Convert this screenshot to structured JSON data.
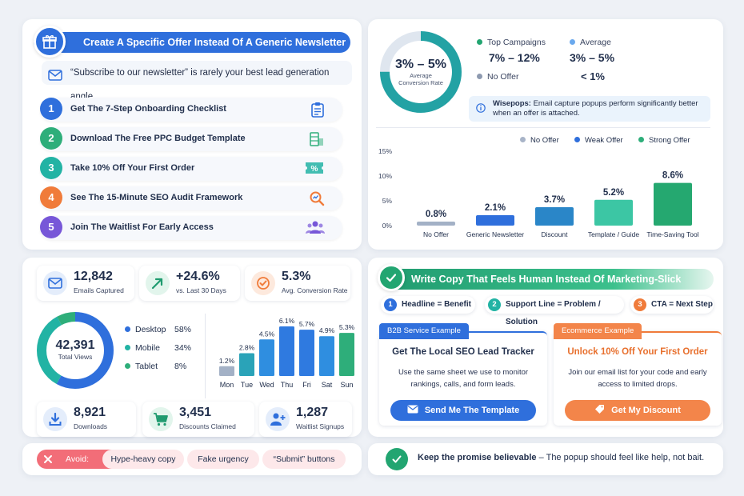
{
  "offers_panel": {
    "title": "Create A Specific Offer Instead Of A Generic Newsletter Ask",
    "quote": "“Subscribe to our newsletter” is rarely your best lead generation angle...",
    "items": [
      {
        "num": "1",
        "label": "Get The 7-Step Onboarding Checklist",
        "color": "#2f6fdc",
        "icon": "clipboard-icon"
      },
      {
        "num": "2",
        "label": "Download The Free PPC Budget Template",
        "color": "#2eae7a",
        "icon": "spreadsheet-icon"
      },
      {
        "num": "3",
        "label": "Take 10% Off Your First Order",
        "color": "#22b3a4",
        "icon": "discount-ticket-icon"
      },
      {
        "num": "4",
        "label": "See The 15-Minute SEO Audit Framework",
        "color": "#f07b3a",
        "icon": "magnifier-icon"
      },
      {
        "num": "5",
        "label": "Join The Waitlist For Early Access",
        "color": "#7757d8",
        "icon": "people-icon"
      }
    ]
  },
  "conversion_panel": {
    "donut_value": "3% – 5%",
    "donut_label_line1": "Average",
    "donut_label_line2": "Conversion Rate",
    "top_campaigns_label": "Top Campaigns",
    "top_campaigns_value": "7% – 12%",
    "average_label": "Average",
    "average_value": "3% – 5%",
    "no_offer_label": "No Offer",
    "no_offer_value": "< 1%",
    "info_bold": "Wisepops:",
    "info_text": " Email capture popups perform significantly better when an offer is attached.",
    "legend": [
      "No Offer",
      "Weak Offer",
      "Strong Offer"
    ]
  },
  "chart_data": {
    "type": "bar",
    "categories": [
      "No Offer",
      "Generic Newsletter",
      "Discount",
      "Template / Guide",
      "Time-Saving Tool"
    ],
    "values": [
      0.8,
      2.1,
      3.7,
      5.2,
      8.6
    ],
    "value_labels": [
      "0.8%",
      "2.1%",
      "3.7%",
      "5.2%",
      "8.6%"
    ],
    "colors": [
      "#a3b1c6",
      "#2f6fdc",
      "#2a86c8",
      "#3cc6a4",
      "#25a870"
    ],
    "ytick_labels": [
      "15%",
      "10%",
      "5%",
      "0%"
    ],
    "ylim": [
      0,
      15
    ],
    "grid": false,
    "legend_placement": "top-right",
    "legend_colors": [
      "#a8b4c8",
      "#2f6fdc",
      "#2eae7a"
    ]
  },
  "metrics_panel": {
    "top_metrics": [
      {
        "value": "12,842",
        "label": "Emails Captured",
        "icon": "envelope-icon",
        "color": "#2f6fdc",
        "bg": "#e4edfb"
      },
      {
        "value": "+24.6%",
        "label": "vs. Last 30 Days",
        "icon": "trend-up-icon",
        "color": "#1f9b6f",
        "bg": "#e2f5ec"
      },
      {
        "value": "5.3%",
        "label": "Avg. Conversion Rate",
        "icon": "target-check-icon",
        "color": "#f07b3a",
        "bg": "#fde9dd"
      }
    ],
    "views_total": "42,391",
    "views_label": "Total Views",
    "devices": [
      {
        "name": "Desktop",
        "pct": "58%",
        "share": 58,
        "color": "#2f6fdc"
      },
      {
        "name": "Mobile",
        "pct": "34%",
        "share": 34,
        "color": "#22b3a4"
      },
      {
        "name": "Tablet",
        "pct": "8%",
        "share": 8,
        "color": "#2eae7a"
      }
    ],
    "week_chart": {
      "days": [
        "Mon",
        "Tue",
        "Wed",
        "Thu",
        "Fri",
        "Sat",
        "Sun"
      ],
      "values": [
        1.2,
        2.8,
        4.5,
        6.1,
        5.7,
        4.9,
        5.3
      ],
      "labels": [
        "1.2%",
        "2.8%",
        "4.5%",
        "6.1%",
        "5.7%",
        "4.9%",
        "5.3%"
      ],
      "colors": [
        "#a3b1c6",
        "#2aa3b8",
        "#2f8ee0",
        "#2f7ae0",
        "#2f7ae0",
        "#2f8ee0",
        "#2eae7a"
      ]
    },
    "bottom_metrics": [
      {
        "value": "8,921",
        "label": "Downloads",
        "icon": "download-icon",
        "color": "#2f6fdc",
        "bg": "#e4edfb"
      },
      {
        "value": "3,451",
        "label": "Discounts Claimed",
        "icon": "cart-icon",
        "color": "#1f9b6f",
        "bg": "#e2f5ec"
      },
      {
        "value": "1,287",
        "label": "Waitlist Signups",
        "icon": "add-user-icon",
        "color": "#2f6fdc",
        "bg": "#e4edfb"
      }
    ]
  },
  "copy_panel": {
    "title": "Write Copy That Feels Human Instead Of Marketing-Slick",
    "pills": [
      {
        "num": "1",
        "label": "Headline = Benefit",
        "color": "#2f6fdc"
      },
      {
        "num": "2",
        "label": "Support Line = Problem / Solution",
        "color": "#22b3a4"
      },
      {
        "num": "3",
        "label": "CTA = Next Step",
        "color": "#f07b3a"
      }
    ],
    "b2b": {
      "tab": "B2B Service Example",
      "title": "Get The Local SEO Lead Tracker",
      "body": "Use the same sheet we use to monitor rankings, calls, and form leads.",
      "button": "Send Me The Template",
      "color": "#2f6fdc"
    },
    "ecom": {
      "tab": "Ecommerce Example",
      "title": "Unlock 10% Off Your First Order",
      "body": "Join our email list for your code and early access to limited drops.",
      "button": "Get My Discount",
      "color": "#f07b3a"
    }
  },
  "avoid_bar": {
    "label": "Avoid:",
    "items": [
      "Hype-heavy copy",
      "Fake urgency",
      "“Submit” buttons"
    ]
  },
  "promise_bar": {
    "bold": "Keep the promise believable",
    "rest": " – The popup should feel like help, not bait."
  }
}
